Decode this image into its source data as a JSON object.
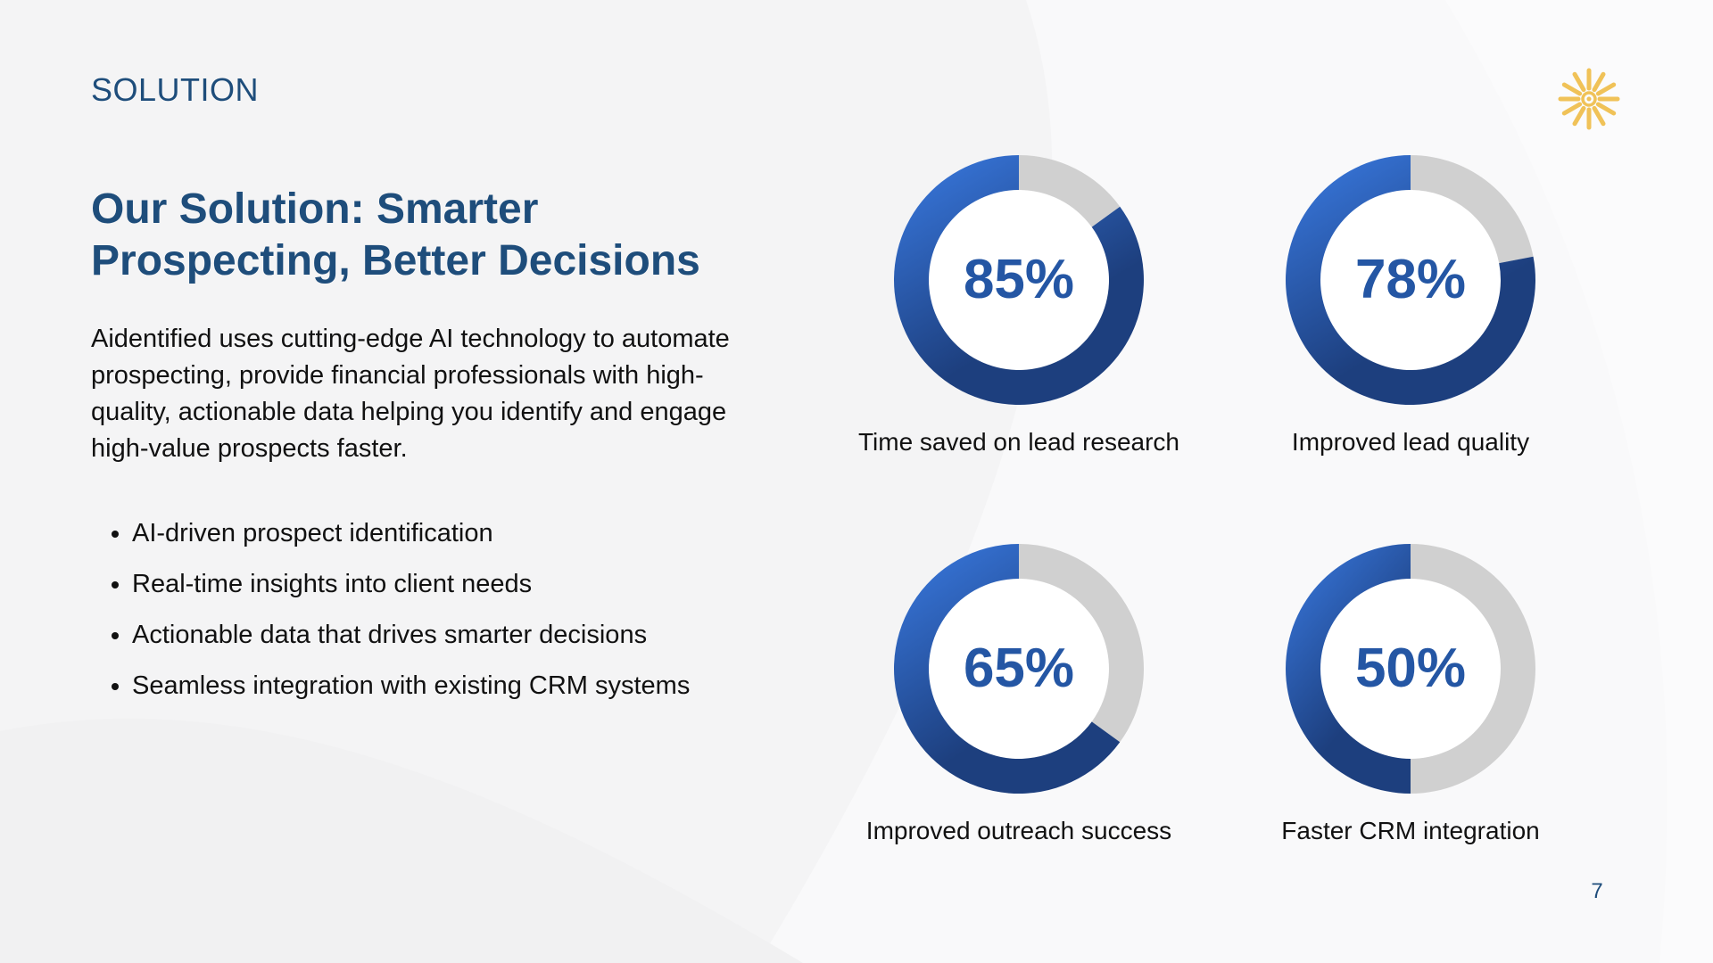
{
  "slide": {
    "section_label": "SOLUTION",
    "headline_line1": "Our Solution: Smarter",
    "headline_line2": "Prospecting, Better Decisions",
    "intro_text": "Aidentified uses cutting-edge AI technology to automate prospecting, provide financial professionals with high-quality, actionable data helping you identify and engage high-value prospects faster.",
    "bullets": [
      "AI-driven prospect identification",
      "Real-time insights into client needs",
      "Actionable data that drives smarter decisions",
      "Seamless integration with existing CRM systems"
    ],
    "page_number": "7"
  },
  "logo": {
    "icon": "sunburst-logo-icon",
    "color": "#f0c258"
  },
  "colors": {
    "heading": "#1e4d7b",
    "value_text": "#2456a4",
    "ring_light": "#3a7be3",
    "ring_dark": "#1d3f7e",
    "ring_track": "#d0d0d0"
  },
  "chart_data": [
    {
      "type": "pie",
      "value": 85,
      "value_label": "85%",
      "caption": "Time saved on lead research"
    },
    {
      "type": "pie",
      "value": 78,
      "value_label": "78%",
      "caption": "Improved lead quality"
    },
    {
      "type": "pie",
      "value": 65,
      "value_label": "65%",
      "caption": "Improved outreach success"
    },
    {
      "type": "pie",
      "value": 50,
      "value_label": "50%",
      "caption": "Faster CRM integration"
    }
  ]
}
